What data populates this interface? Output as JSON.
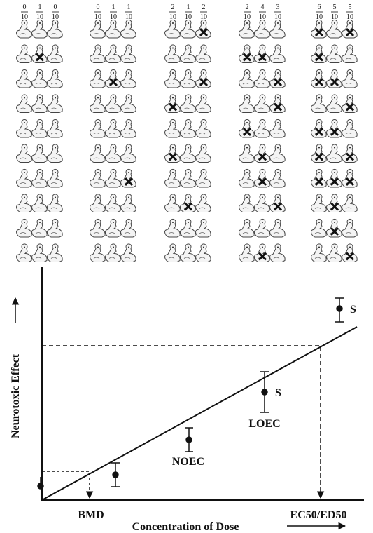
{
  "groups": [
    {
      "fractions": [
        {
          "numerator": "0",
          "denominator": "10"
        },
        {
          "numerator": "1",
          "denominator": "10"
        },
        {
          "numerator": "0",
          "denominator": "10"
        }
      ],
      "crossed": [
        [],
        [
          1
        ],
        []
      ]
    },
    {
      "fractions": [
        {
          "numerator": "0",
          "denominator": "10"
        },
        {
          "numerator": "1",
          "denominator": "10"
        },
        {
          "numerator": "1",
          "denominator": "10"
        }
      ],
      "crossed": [
        [],
        [
          2
        ],
        [
          6
        ]
      ]
    },
    {
      "fractions": [
        {
          "numerator": "2",
          "denominator": "10"
        },
        {
          "numerator": "1",
          "denominator": "10"
        },
        {
          "numerator": "2",
          "denominator": "10"
        }
      ],
      "crossed": [
        [
          3,
          5
        ],
        [
          7
        ],
        [
          0,
          2
        ]
      ]
    },
    {
      "fractions": [
        {
          "numerator": "2",
          "denominator": "10"
        },
        {
          "numerator": "4",
          "denominator": "10"
        },
        {
          "numerator": "3",
          "denominator": "10"
        }
      ],
      "crossed": [
        [
          1,
          4
        ],
        [
          1,
          5,
          6,
          9
        ],
        [
          2,
          3,
          7
        ]
      ]
    },
    {
      "fractions": [
        {
          "numerator": "6",
          "denominator": "10"
        },
        {
          "numerator": "5",
          "denominator": "10"
        },
        {
          "numerator": "5",
          "denominator": "10"
        }
      ],
      "crossed": [
        [
          0,
          1,
          2,
          4,
          5,
          6
        ],
        [
          2,
          4,
          6,
          7,
          8
        ],
        [
          0,
          3,
          5,
          6,
          9
        ]
      ]
    }
  ],
  "graph": {
    "y_axis_label": "Neurotoxic Effect",
    "x_axis_label": "Concentration of Dose",
    "bmd": "BMD",
    "ec50": "EC50/ED50",
    "noec": "NOEC",
    "loec": "LOEC",
    "s_low": "S",
    "s_high": "S"
  }
}
